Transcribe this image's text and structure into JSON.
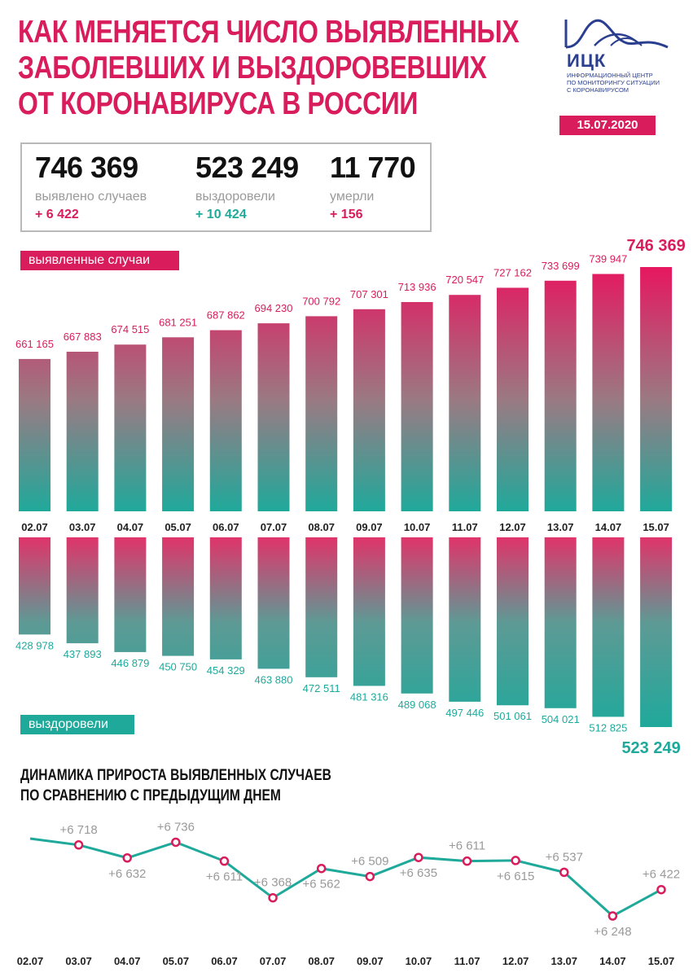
{
  "title_lines": [
    "КАК МЕНЯЕТСЯ ЧИСЛО ВЫЯВЛЕННЫХ",
    "ЗАБОЛЕВШИХ И ВЫЗДОРОВЕВШИХ",
    "ОТ КОРОНАВИРУСА В РОССИИ"
  ],
  "logo": {
    "name": "ИЦК",
    "subtitle": [
      "ИНФОРМАЦИОННЫЙ ЦЕНТР",
      "ПО МОНИТОРИНГУ СИТУАЦИИ",
      "С КОРОНАВИРУСОМ"
    ]
  },
  "date": "15.07.2020",
  "stats": {
    "detected": {
      "value": "746 369",
      "label": "выявлено случаев",
      "delta": "+ 6 422"
    },
    "recovered": {
      "value": "523 249",
      "label": "выздоровели",
      "delta": "+ 10 424"
    },
    "deaths": {
      "value": "11 770",
      "label": "умерли",
      "delta": "+ 156"
    }
  },
  "colors": {
    "pink": "#d81c5c",
    "teal": "#1fa99b",
    "grey": "#9a9a9a"
  },
  "chart_data": [
    {
      "type": "bar",
      "tag": "выявленные случаи",
      "categories": [
        "02.07",
        "03.07",
        "04.07",
        "05.07",
        "06.07",
        "07.07",
        "08.07",
        "09.07",
        "10.07",
        "11.07",
        "12.07",
        "13.07",
        "14.07",
        "15.07"
      ],
      "values": [
        661165,
        667883,
        674515,
        681251,
        687862,
        694230,
        700792,
        707301,
        713936,
        720547,
        727162,
        733699,
        739947,
        746369
      ],
      "labels": [
        "661 165",
        "667 883",
        "674 515",
        "681 251",
        "687 862",
        "694 230",
        "700 792",
        "707 301",
        "713 936",
        "720 547",
        "727 162",
        "733 699",
        "739 947",
        "746 369"
      ]
    },
    {
      "type": "bar",
      "tag": "выздоровели",
      "categories": [
        "02.07",
        "03.07",
        "04.07",
        "05.07",
        "06.07",
        "07.07",
        "08.07",
        "09.07",
        "10.07",
        "11.07",
        "12.07",
        "13.07",
        "14.07",
        "15.07"
      ],
      "values": [
        428978,
        437893,
        446879,
        450750,
        454329,
        463880,
        472511,
        481316,
        489068,
        497446,
        501061,
        504021,
        512825,
        523249
      ],
      "labels": [
        "428 978",
        "437 893",
        "446 879",
        "450 750",
        "454 329",
        "463 880",
        "472 511",
        "481 316",
        "489 068",
        "497 446",
        "501 061",
        "504 021",
        "512 825",
        "523 249"
      ]
    },
    {
      "type": "line",
      "title_lines": [
        "ДИНАМИКА ПРИРОСТА ВЫЯВЛЕННЫХ СЛУЧАЕВ",
        "ПО СРАВНЕНИЮ С ПРЕДЫДУЩИМ ДНЕМ"
      ],
      "categories": [
        "02.07",
        "03.07",
        "04.07",
        "05.07",
        "06.07",
        "07.07",
        "08.07",
        "09.07",
        "10.07",
        "11.07",
        "12.07",
        "13.07",
        "14.07",
        "15.07"
      ],
      "values": [
        6760,
        6718,
        6632,
        6736,
        6611,
        6368,
        6562,
        6509,
        6635,
        6611,
        6615,
        6537,
        6248,
        6422
      ],
      "labels": [
        null,
        "+6 718",
        "+6 632",
        "+6 736",
        "+6 611",
        "+6 368",
        "+6 562",
        "+6 509",
        "+6 635",
        "+6 611",
        "+6 615",
        "+6 537",
        "+6 248",
        "+6 422"
      ]
    }
  ]
}
